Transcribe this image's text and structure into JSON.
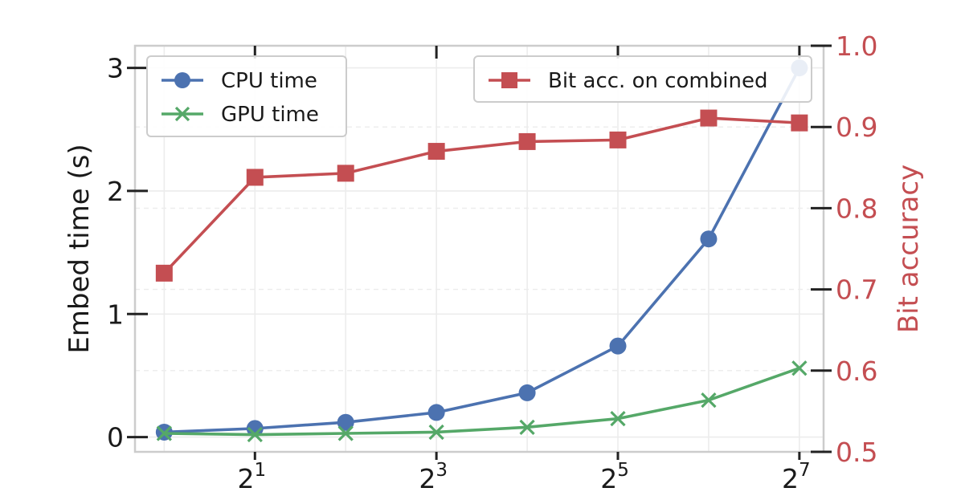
{
  "chart_data": {
    "type": "line",
    "xscale": "log2",
    "x": [
      1,
      2,
      4,
      8,
      16,
      32,
      64,
      128
    ],
    "xlim": [
      0.8,
      154
    ],
    "xticks": [
      {
        "value": 2,
        "base": "2",
        "exp": "1"
      },
      {
        "value": 8,
        "base": "2",
        "exp": "3"
      },
      {
        "value": 32,
        "base": "2",
        "exp": "5"
      },
      {
        "value": 128,
        "base": "2",
        "exp": "7"
      }
    ],
    "xlabel": "",
    "ylabel": "Embed time (s)",
    "ylim": [
      -0.12,
      3.18
    ],
    "yticks": [
      0,
      1,
      2,
      3
    ],
    "y2label": "Bit accuracy",
    "y2lim": [
      0.5,
      1.0
    ],
    "y2ticks": [
      "0.5",
      "0.6",
      "0.7",
      "0.8",
      "0.9",
      "1.0"
    ],
    "grid": true,
    "series": [
      {
        "name": "CPU time",
        "axis": "left",
        "color": "#4c72b0",
        "marker": "circle",
        "values": [
          0.04,
          0.07,
          0.12,
          0.2,
          0.36,
          0.74,
          1.61,
          3.0
        ]
      },
      {
        "name": "GPU time",
        "axis": "left",
        "color": "#55a868",
        "marker": "x",
        "values": [
          0.03,
          0.02,
          0.03,
          0.04,
          0.08,
          0.15,
          0.3,
          0.56
        ]
      },
      {
        "name": "Bit acc. on combined",
        "axis": "right",
        "color": "#c44e52",
        "marker": "square",
        "values": [
          0.72,
          0.838,
          0.843,
          0.87,
          0.882,
          0.884,
          0.911,
          0.905
        ]
      }
    ],
    "legend_left": "top-left",
    "legend_right": "top-right"
  }
}
